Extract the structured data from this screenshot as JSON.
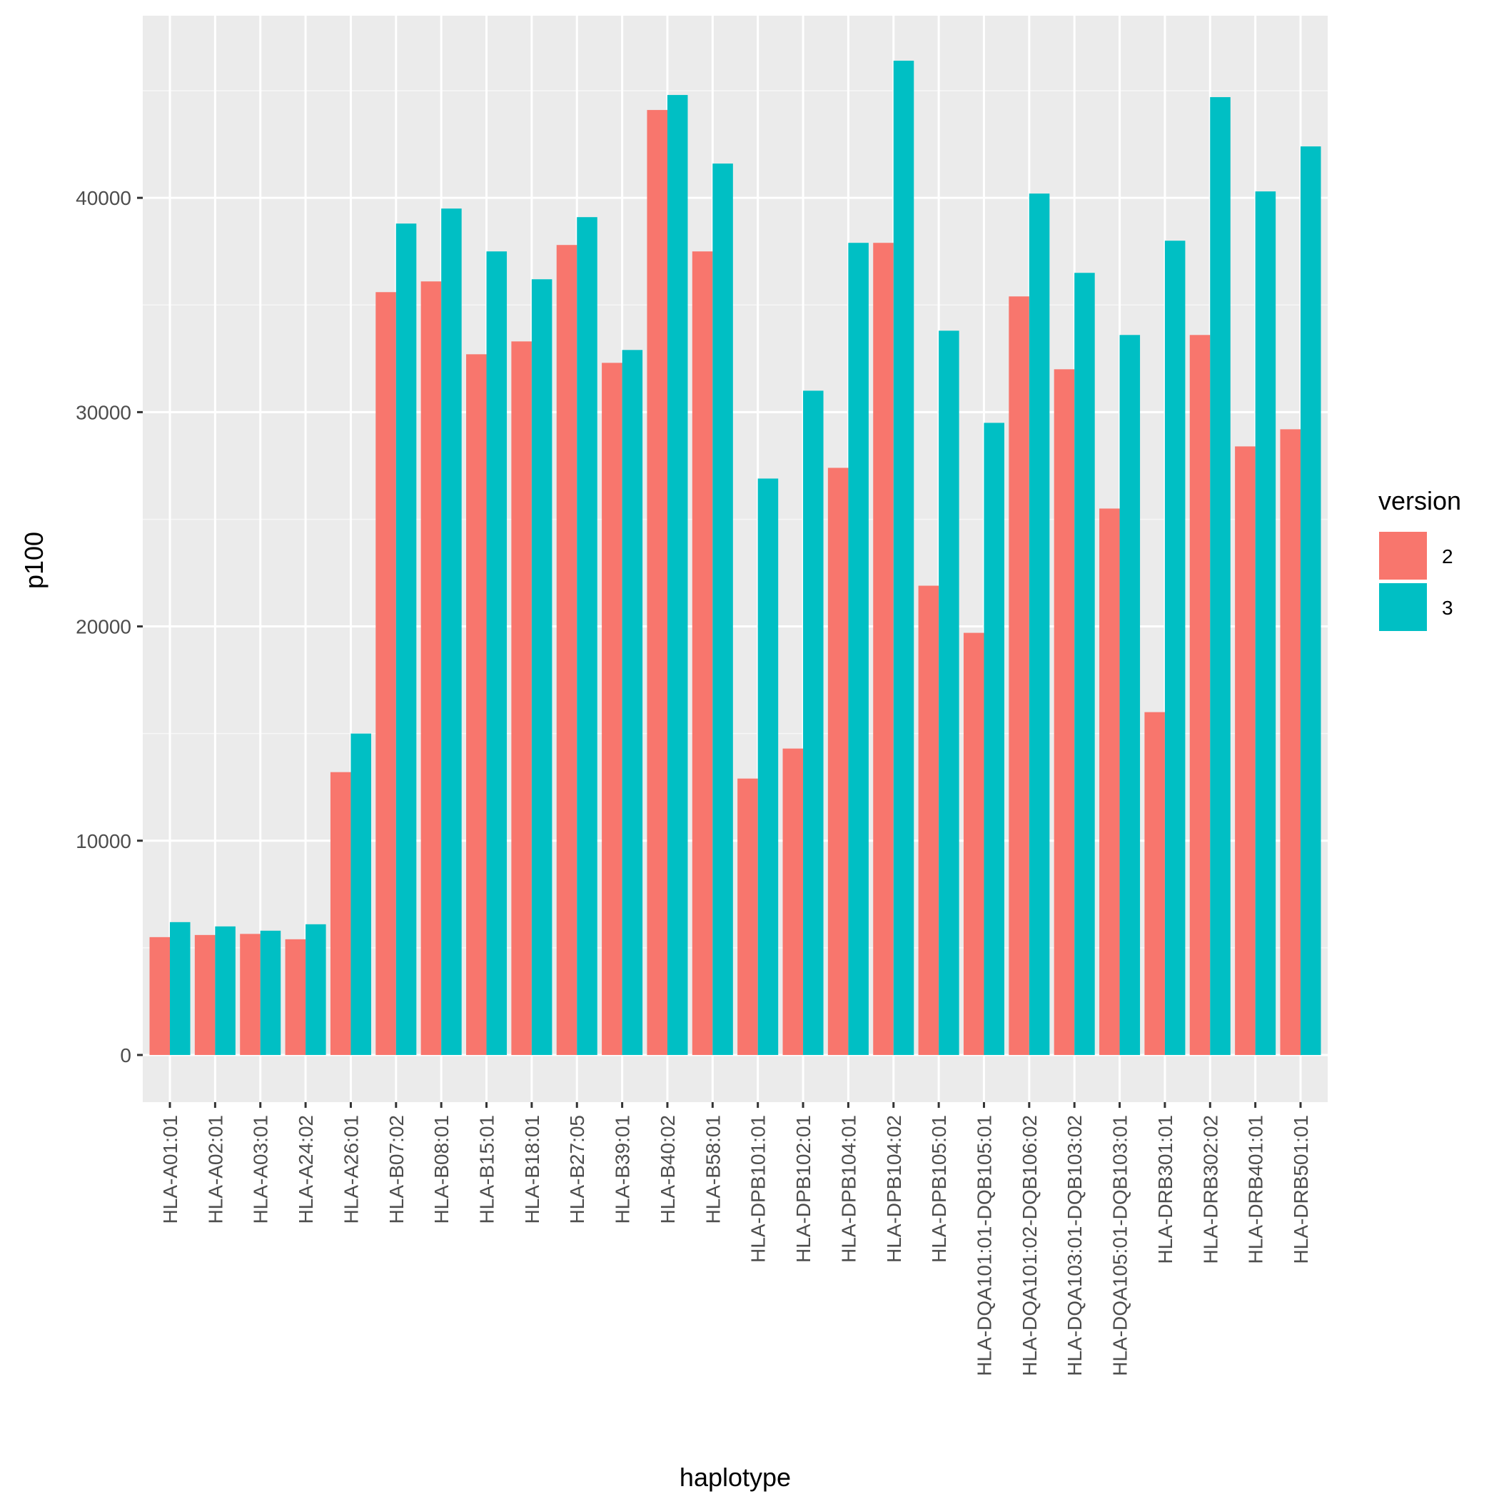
{
  "chart_data": {
    "type": "bar",
    "xlabel": "haplotype",
    "ylabel": "p100",
    "ylim": [
      -2200,
      48500
    ],
    "yticks": [
      0,
      10000,
      20000,
      30000,
      40000
    ],
    "grid": true,
    "legend": {
      "title": "version",
      "position": "right"
    },
    "categories": [
      "HLA-A01:01",
      "HLA-A02:01",
      "HLA-A03:01",
      "HLA-A24:02",
      "HLA-A26:01",
      "HLA-B07:02",
      "HLA-B08:01",
      "HLA-B15:01",
      "HLA-B18:01",
      "HLA-B27:05",
      "HLA-B39:01",
      "HLA-B40:02",
      "HLA-B58:01",
      "HLA-DPB101:01",
      "HLA-DPB102:01",
      "HLA-DPB104:01",
      "HLA-DPB104:02",
      "HLA-DPB105:01",
      "HLA-DQA101:01-DQB105:01",
      "HLA-DQA101:02-DQB106:02",
      "HLA-DQA103:01-DQB103:02",
      "HLA-DQA105:01-DQB103:01",
      "HLA-DRB301:01",
      "HLA-DRB302:02",
      "HLA-DRB401:01",
      "HLA-DRB501:01"
    ],
    "series": [
      {
        "name": "2",
        "color": "#F8766D",
        "values": [
          5500,
          5600,
          5650,
          5400,
          13200,
          35600,
          36100,
          32700,
          33300,
          37800,
          32300,
          44100,
          37500,
          12900,
          14300,
          27400,
          37900,
          21900,
          19700,
          35400,
          32000,
          25500,
          16000,
          33600,
          28400,
          29200
        ]
      },
      {
        "name": "3",
        "color": "#00BFC4",
        "values": [
          6200,
          6000,
          5800,
          6100,
          15000,
          38800,
          39500,
          37500,
          36200,
          39100,
          32900,
          44800,
          41600,
          26900,
          31000,
          37900,
          46400,
          33800,
          29500,
          40200,
          36500,
          33600,
          38000,
          44700,
          40300,
          42400
        ]
      }
    ]
  },
  "colors": {
    "panel_bg": "#EBEBEB",
    "grid_major": "#FFFFFF",
    "grid_minor": "#F7F7F7",
    "tick": "#333333"
  }
}
